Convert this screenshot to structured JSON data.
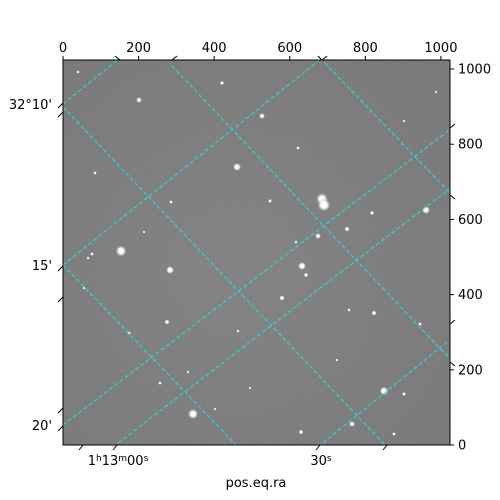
{
  "figure": {
    "xlabel": "pos.eq.ra",
    "image_pixel_range": {
      "x": [
        0,
        1024
      ],
      "y": [
        0,
        1024
      ]
    }
  },
  "pixel_axes": {
    "top_ticks": [
      "0",
      "200",
      "400",
      "600",
      "800",
      "1000"
    ],
    "right_ticks": [
      "0",
      "200",
      "400",
      "600",
      "800",
      "1000"
    ]
  },
  "world_axes": {
    "dec_ticks": [
      "32°10'",
      "15'",
      "20'"
    ],
    "ra_ticks": [
      {
        "h": "1",
        "hu": "h",
        "m": "13",
        "mu": "m",
        "s": "00",
        "su": "s"
      },
      {
        "h": "",
        "hu": "",
        "m": "",
        "mu": "",
        "s": "30",
        "su": "s"
      }
    ]
  },
  "colors": {
    "grid": "#22e0e6",
    "sky": "#7c7c7c"
  }
}
